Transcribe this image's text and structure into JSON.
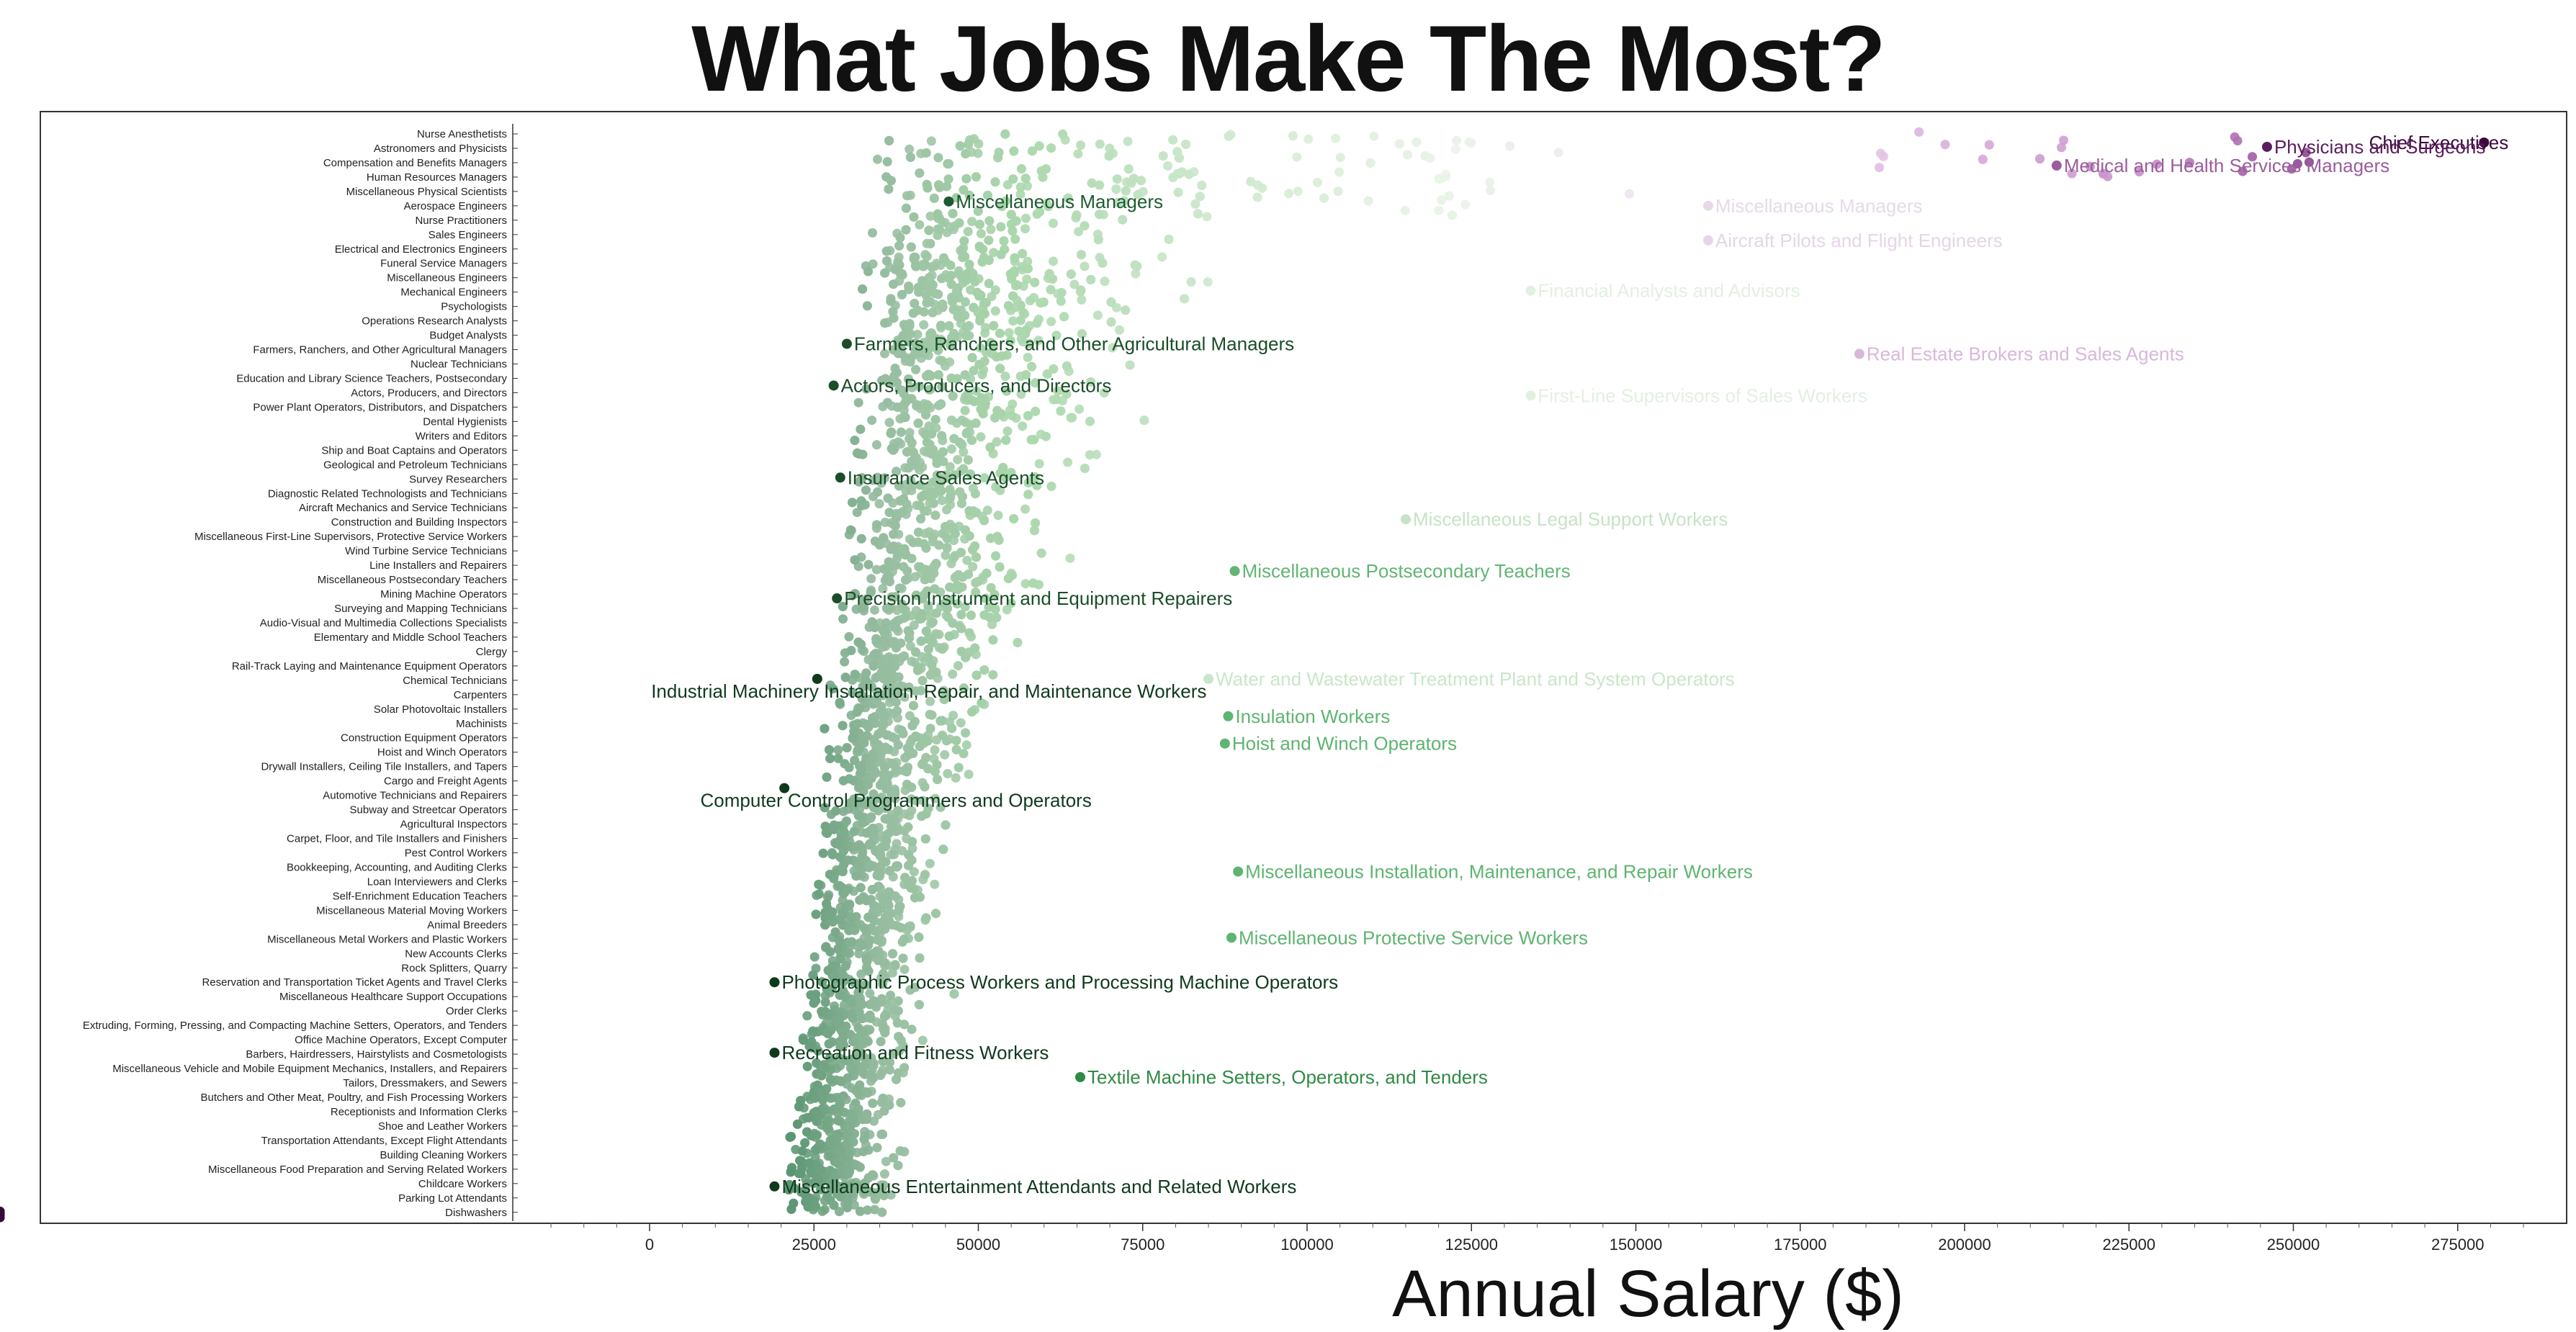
{
  "chart_data": {
    "type": "scatter",
    "title": "What Jobs Make The Most?",
    "xlabel": "Annual Salary ($)",
    "ylabel": "",
    "xlim": [
      -20000,
      285000
    ],
    "x_ticks": [
      "0",
      "25000",
      "50000",
      "75000",
      "100000",
      "125000",
      "150000",
      "175000",
      "200000",
      "225000",
      "250000",
      "275000"
    ],
    "occupations": [
      "Nurse Anesthetists",
      "Astronomers and Physicists",
      "Compensation and Benefits Managers",
      "Human Resources Managers",
      "Miscellaneous Physical Scientists",
      "Aerospace Engineers",
      "Nurse Practitioners",
      "Sales Engineers",
      "Electrical and Electronics Engineers",
      "Funeral Service Managers",
      "Miscellaneous Engineers",
      "Mechanical Engineers",
      "Psychologists",
      "Operations Research Analysts",
      "Budget Analysts",
      "Farmers, Ranchers, and Other Agricultural Managers",
      "Nuclear Technicians",
      "Education and Library Science Teachers, Postsecondary",
      "Actors, Producers, and Directors",
      "Power Plant Operators, Distributors, and Dispatchers",
      "Dental Hygienists",
      "Writers and Editors",
      "Ship and Boat Captains and Operators",
      "Geological and Petroleum Technicians",
      "Survey Researchers",
      "Diagnostic Related Technologists and Technicians",
      "Aircraft Mechanics and Service Technicians",
      "Construction and Building Inspectors",
      "Miscellaneous First-Line Supervisors, Protective Service Workers",
      "Wind Turbine Service Technicians",
      "Line Installers and Repairers",
      "Miscellaneous Postsecondary Teachers",
      "Mining Machine Operators",
      "Surveying and Mapping Technicians",
      "Audio-Visual and Multimedia Collections Specialists",
      "Elementary and Middle School Teachers",
      "Clergy",
      "Rail-Track Laying and Maintenance Equipment Operators",
      "Chemical Technicians",
      "Carpenters",
      "Solar Photovoltaic Installers",
      "Machinists",
      "Construction Equipment Operators",
      "Hoist and Winch Operators",
      "Drywall Installers, Ceiling Tile Installers, and Tapers",
      "Cargo and Freight Agents",
      "Automotive Technicians and Repairers",
      "Subway and Streetcar Operators",
      "Agricultural Inspectors",
      "Carpet, Floor, and Tile Installers and Finishers",
      "Pest Control Workers",
      "Bookkeeping, Accounting, and Auditing Clerks",
      "Loan Interviewers and Clerks",
      "Self-Enrichment Education Teachers",
      "Miscellaneous Material Moving Workers",
      "Animal Breeders",
      "Miscellaneous Metal Workers and Plastic Workers",
      "New Accounts Clerks",
      "Rock Splitters, Quarry",
      "Reservation and Transportation Ticket Agents and Travel Clerks",
      "Miscellaneous Healthcare Support Occupations",
      "Order Clerks",
      "Extruding, Forming, Pressing, and Compacting Machine Setters, Operators, and Tenders",
      "Office Machine Operators, Except Computer",
      "Barbers, Hairdressers, Hairstylists and Cosmetologists",
      "Miscellaneous Vehicle and Mobile Equipment Mechanics, Installers, and Repairers",
      "Tailors, Dressmakers, and Sewers",
      "Butchers and Other Meat, Poultry, and Fish Processing Workers",
      "Receptionists and Information Clerks",
      "Shoe and Leather Workers",
      "Transportation Attendants, Except Flight Attendants",
      "Building Cleaning Workers",
      "Miscellaneous Food Preparation and Serving Related Workers",
      "Childcare Workers",
      "Parking Lot Attendants",
      "Dishwashers"
    ],
    "annotations": [
      {
        "label": "Chief Executives",
        "salary": 279000,
        "row": 0.6,
        "color": "#3d0a3f"
      },
      {
        "label": "Physicians and Surgeons",
        "salary": 246000,
        "row": 0.9,
        "color": "#5a1e5c"
      },
      {
        "label": "Medical and Health Services Managers",
        "salary": 214000,
        "row": 2.2,
        "color": "#9a5d9c"
      },
      {
        "label": "Miscellaneous Managers",
        "salary": 45500,
        "row": 4.7,
        "color": "#1d5a30"
      },
      {
        "label": "Miscellaneous Managers",
        "salary": 161000,
        "row": 5.0,
        "color": "#e9d8ea"
      },
      {
        "label": "Aircraft Pilots and Flight Engineers",
        "salary": 161000,
        "row": 7.4,
        "color": "#e6d5e7"
      },
      {
        "label": "Financial Analysts and Advisors",
        "salary": 134000,
        "row": 10.9,
        "color": "#e2f0e2"
      },
      {
        "label": "Farmers, Ranchers, and Other Agricultural Managers",
        "salary": 30000,
        "row": 14.6,
        "color": "#1a4d28"
      },
      {
        "label": "Real Estate Brokers and Sales Agents",
        "salary": 184000,
        "row": 15.3,
        "color": "#d9b7db"
      },
      {
        "label": "Actors, Producers, and Directors",
        "salary": 28000,
        "row": 17.5,
        "color": "#1a4d28"
      },
      {
        "label": "First-Line Supervisors of Sales Workers",
        "salary": 134000,
        "row": 18.2,
        "color": "#e2f0e2"
      },
      {
        "label": "Insurance Sales Agents",
        "salary": 29000,
        "row": 23.9,
        "color": "#1a4d28"
      },
      {
        "label": "Miscellaneous Legal Support Workers",
        "salary": 115000,
        "row": 26.8,
        "color": "#c6e3c6"
      },
      {
        "label": "Miscellaneous Postsecondary Teachers",
        "salary": 89000,
        "row": 30.4,
        "color": "#62b574"
      },
      {
        "label": "Precision Instrument and Equipment Repairers",
        "salary": 28500,
        "row": 32.3,
        "color": "#1a4d28"
      },
      {
        "label": "Industrial Machinery Installation, Repair, and Maintenance Workers",
        "salary": 25500,
        "row": 37.9,
        "color": "#0f3a1c"
      },
      {
        "label": "Water and Wastewater Treatment Plant and System Operators",
        "salary": 85000,
        "row": 37.9,
        "color": "#c9e6c9"
      },
      {
        "label": "Insulation Workers",
        "salary": 88000,
        "row": 40.5,
        "color": "#5fb471"
      },
      {
        "label": "Hoist and Winch Operators",
        "salary": 87500,
        "row": 42.4,
        "color": "#5fb471"
      },
      {
        "label": "Computer Control Programmers and Operators",
        "salary": 20500,
        "row": 45.5,
        "color": "#0f3a1c"
      },
      {
        "label": "Miscellaneous Installation, Maintenance, and Repair Workers",
        "salary": 89500,
        "row": 51.3,
        "color": "#5fb471"
      },
      {
        "label": "Miscellaneous Protective Service Workers",
        "salary": 88500,
        "row": 55.9,
        "color": "#5fb471"
      },
      {
        "label": "Photographic Process Workers and Processing Machine Operators",
        "salary": 19000,
        "row": 59.0,
        "color": "#0f3a1c"
      },
      {
        "label": "Recreation and Fitness Workers",
        "salary": 19000,
        "row": 63.9,
        "color": "#0f3a1c"
      },
      {
        "label": "Textile Machine Setters, Operators, and Tenders",
        "salary": 65500,
        "row": 65.6,
        "color": "#2f8a45"
      },
      {
        "label": "Miscellaneous Entertainment Attendants and Related Workers",
        "salary": 19000,
        "row": 73.2,
        "color": "#0f3a1c"
      }
    ]
  }
}
